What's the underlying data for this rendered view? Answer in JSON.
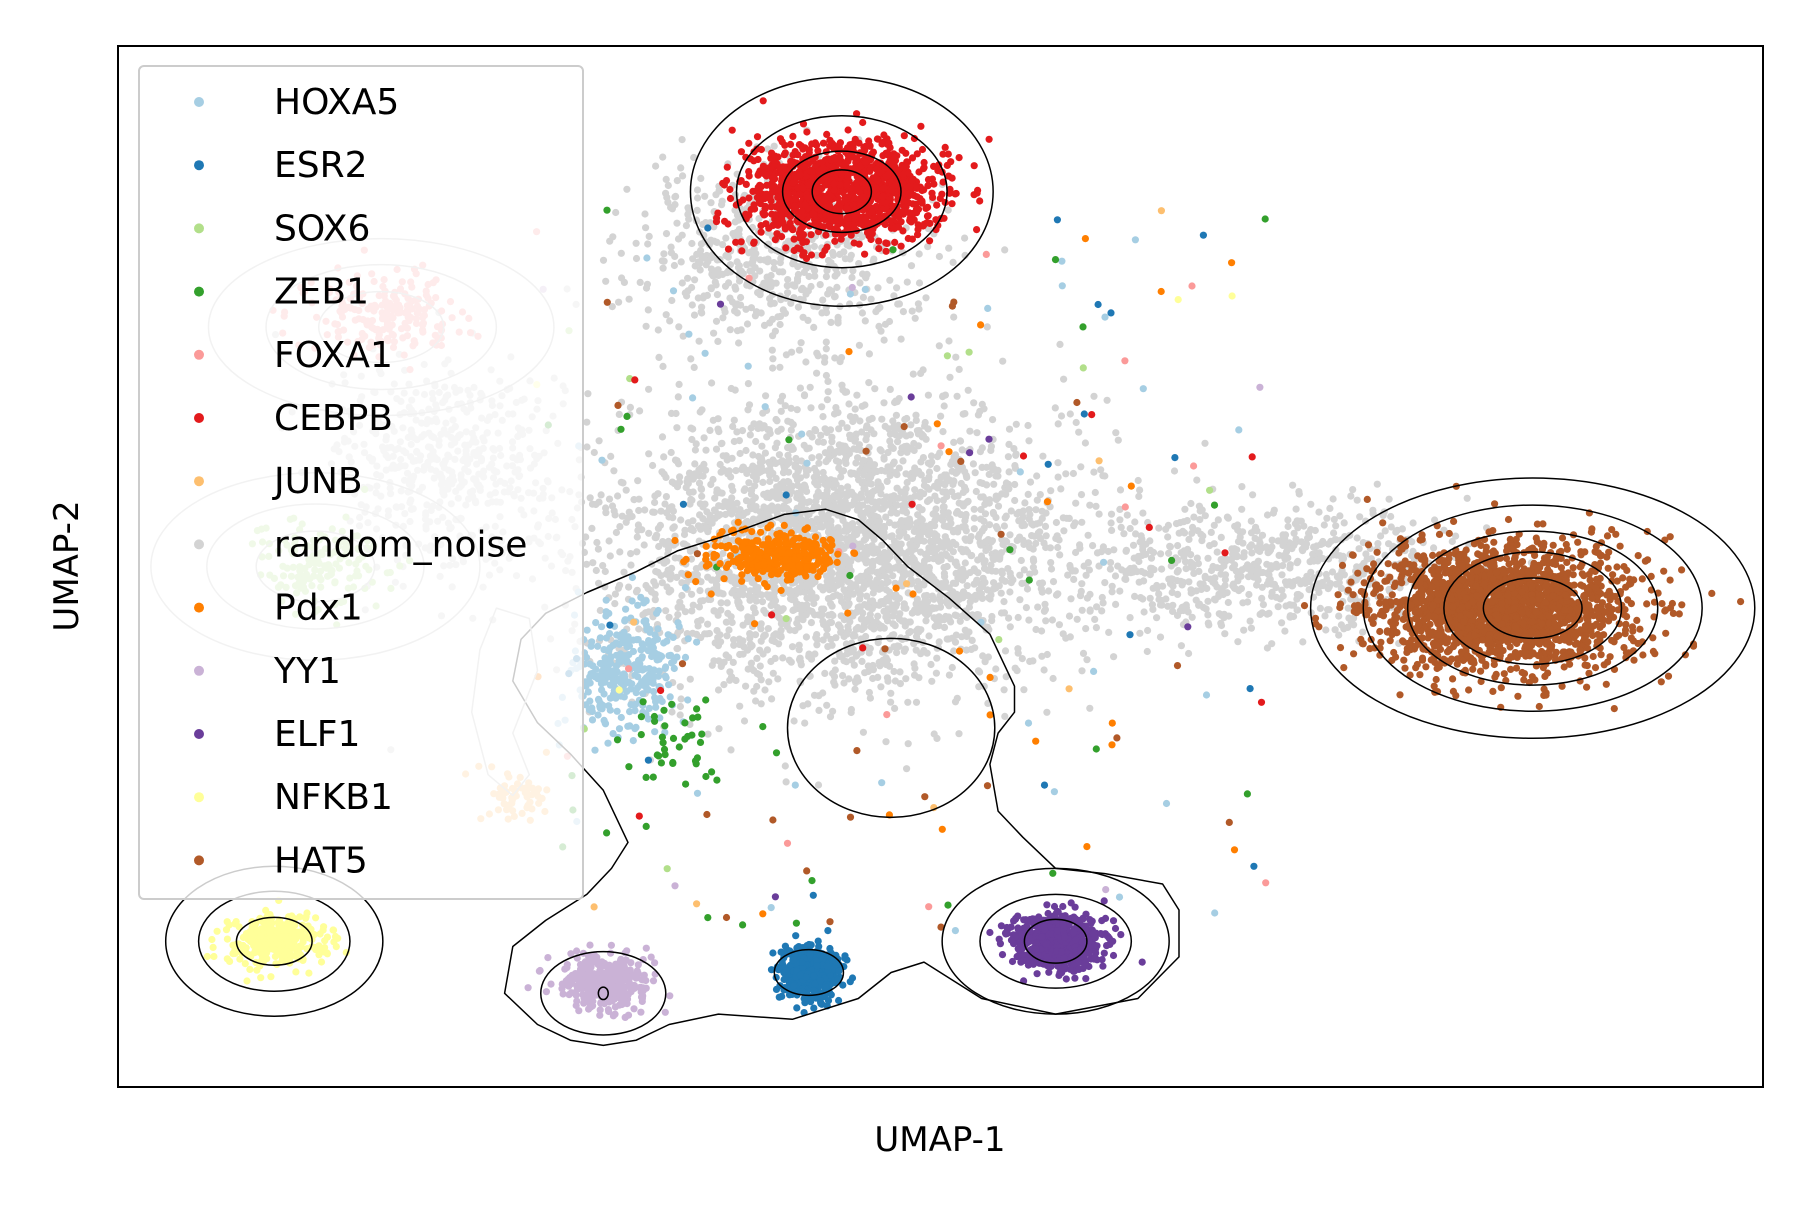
{
  "chart_data": {
    "type": "scatter",
    "xlabel": "UMAP-1",
    "ylabel": "UMAP-2",
    "xlim": [
      0,
      100
    ],
    "ylim": [
      0,
      100
    ],
    "ticks": "hidden",
    "grid": false,
    "legend_placement": "top-left",
    "series": [
      {
        "name": "HOXA5",
        "color": "#a6cee3",
        "clusters": [
          {
            "center": [
              31,
              40
            ],
            "spread": [
              3.2,
              6.0
            ],
            "n": 300
          }
        ],
        "scatter_n": 40
      },
      {
        "name": "ESR2",
        "color": "#1f78b4",
        "clusters": [
          {
            "center": [
              42,
              11
            ],
            "spread": [
              1.8,
              2.6
            ],
            "n": 420
          }
        ],
        "scatter_n": 20
      },
      {
        "name": "SOX6",
        "color": "#b2df8a",
        "clusters": [
          {
            "center": [
              12,
              50
            ],
            "spread": [
              4.0,
              4.2
            ],
            "n": 150
          }
        ],
        "scatter_n": 10
      },
      {
        "name": "ZEB1",
        "color": "#33a02c",
        "clusters": [
          {
            "center": [
              34,
              33
            ],
            "spread": [
              3.0,
              5.0
            ],
            "n": 40
          }
        ],
        "scatter_n": 30
      },
      {
        "name": "FOXA1",
        "color": "#fb9a99",
        "clusters": [
          {
            "center": [
              16,
              74
            ],
            "spread": [
              4.5,
              4.0
            ],
            "n": 200
          }
        ],
        "scatter_n": 15
      },
      {
        "name": "CEBPB",
        "color": "#e31a1c",
        "clusters": [
          {
            "center": [
              44,
              86
            ],
            "spread": [
              5.5,
              4.8
            ],
            "n": 1300
          }
        ],
        "scatter_n": 12
      },
      {
        "name": "JUNB",
        "color": "#fdbf6f",
        "clusters": [
          {
            "center": [
              24,
              28
            ],
            "spread": [
              2.0,
              2.5
            ],
            "n": 60
          }
        ],
        "scatter_n": 8
      },
      {
        "name": "random_noise",
        "color": "#d3d3d3",
        "clusters": [
          {
            "center": [
              44,
              52
            ],
            "spread": [
              14,
              14
            ],
            "n": 3000
          },
          {
            "center": [
              70,
              50
            ],
            "spread": [
              12,
              6
            ],
            "n": 700
          },
          {
            "center": [
              40,
              80
            ],
            "spread": [
              9,
              8
            ],
            "n": 600
          },
          {
            "center": [
              20,
              60
            ],
            "spread": [
              7,
              10
            ],
            "n": 500
          }
        ],
        "scatter_n": 0
      },
      {
        "name": "Pdx1",
        "color": "#ff7f00",
        "clusters": [
          {
            "center": [
              40,
              51
            ],
            "spread": [
              3.8,
              2.4
            ],
            "n": 320
          }
        ],
        "scatter_n": 25
      },
      {
        "name": "YY1",
        "color": "#cab2d6",
        "clusters": [
          {
            "center": [
              29.5,
              10
            ],
            "spread": [
              2.6,
              2.6
            ],
            "n": 380
          }
        ],
        "scatter_n": 6
      },
      {
        "name": "ELF1",
        "color": "#6a3d9a",
        "clusters": [
          {
            "center": [
              57,
              14
            ],
            "spread": [
              2.8,
              2.6
            ],
            "n": 650
          }
        ],
        "scatter_n": 6
      },
      {
        "name": "NFKB1",
        "color": "#ffff99",
        "clusters": [
          {
            "center": [
              9.5,
              14
            ],
            "spread": [
              3.0,
              2.6
            ],
            "n": 320
          }
        ],
        "scatter_n": 4
      },
      {
        "name": "HAT5",
        "color": "#b15928",
        "clusters": [
          {
            "center": [
              84,
              46
            ],
            "spread": [
              7.8,
              6.0
            ],
            "n": 2100
          }
        ],
        "scatter_n": 25
      }
    ],
    "density_contours": [
      {
        "color": "#000000",
        "shape": "ellipses",
        "center": [
          44,
          86
        ],
        "radii": [
          [
            9.2,
            11
          ],
          [
            6.4,
            7.3
          ],
          [
            3.6,
            3.9
          ],
          [
            1.8,
            2.1
          ]
        ]
      },
      {
        "color": "#000000",
        "shape": "ellipses",
        "center": [
          86,
          46
        ],
        "radii": [
          [
            13.5,
            12.5
          ],
          [
            10.3,
            9.9
          ],
          [
            7.6,
            7.4
          ],
          [
            5.4,
            5.4
          ],
          [
            3.0,
            2.9
          ]
        ]
      },
      {
        "color": "#000000",
        "shape": "ellipses",
        "center": [
          9.5,
          14
        ],
        "radii": [
          [
            6.6,
            7.2
          ],
          [
            4.6,
            4.8
          ],
          [
            2.3,
            2.3
          ]
        ]
      },
      {
        "color": "#000000",
        "shape": "ellipses",
        "center": [
          57,
          14
        ],
        "radii": [
          [
            6.9,
            7.0
          ],
          [
            4.6,
            4.5
          ],
          [
            1.9,
            2.1
          ]
        ]
      },
      {
        "color": "#000000",
        "shape": "ellipses",
        "center": [
          42,
          11
        ],
        "radii": [
          [
            2.1,
            2.2
          ]
        ]
      },
      {
        "color": "#000000",
        "shape": "ellipses",
        "center": [
          29.5,
          9
        ],
        "radii": [
          [
            3.8,
            4.0
          ],
          [
            0.3,
            0.6
          ]
        ]
      },
      {
        "color": "#000000",
        "shape": "ellipses",
        "center": [
          47,
          34.5
        ],
        "radii": [
          [
            6.3,
            8.6
          ]
        ]
      },
      {
        "color": "#000000",
        "shape": "path",
        "points": [
          [
            24.5,
            43
          ],
          [
            26,
            45.5
          ],
          [
            28.5,
            47.5
          ],
          [
            31.5,
            49.5
          ],
          [
            34,
            51.5
          ],
          [
            37,
            53
          ],
          [
            40.5,
            55
          ],
          [
            43,
            55.5
          ],
          [
            45,
            54.5
          ],
          [
            46.5,
            52.5
          ],
          [
            48,
            50
          ],
          [
            50.5,
            47
          ],
          [
            53,
            43.5
          ],
          [
            54.5,
            38.5
          ],
          [
            54.5,
            36
          ],
          [
            53.5,
            34
          ],
          [
            53,
            31
          ],
          [
            53.5,
            26.5
          ],
          [
            55,
            24
          ],
          [
            57,
            21
          ],
          [
            60,
            20.5
          ],
          [
            63.5,
            19.5
          ],
          [
            64.5,
            17
          ],
          [
            64.5,
            12.5
          ],
          [
            62,
            8.5
          ],
          [
            57,
            7
          ],
          [
            52.5,
            8.5
          ],
          [
            50.5,
            10.5
          ],
          [
            49,
            12
          ],
          [
            47,
            11
          ],
          [
            45,
            8.5
          ],
          [
            41,
            6.5
          ],
          [
            36.5,
            7
          ],
          [
            33.5,
            6
          ],
          [
            31.5,
            4.5
          ],
          [
            29.5,
            4
          ],
          [
            27.5,
            4.5
          ],
          [
            25.5,
            6
          ],
          [
            23.5,
            9
          ],
          [
            24,
            13.5
          ],
          [
            26,
            16
          ],
          [
            28.5,
            18.5
          ],
          [
            30,
            21
          ],
          [
            31,
            23.5
          ],
          [
            29.5,
            28.5
          ],
          [
            27.5,
            32
          ],
          [
            25.5,
            35
          ],
          [
            24,
            39
          ],
          [
            24.5,
            43
          ]
        ]
      },
      {
        "color": "#bdbdbd",
        "shape": "ellipses",
        "center": [
          16,
          73
        ],
        "radii": [
          [
            10.5,
            8.5
          ],
          [
            7.0,
            6.0
          ],
          [
            3.8,
            3.4
          ]
        ]
      },
      {
        "color": "#bdbdbd",
        "shape": "ellipses",
        "center": [
          12,
          50
        ],
        "radii": [
          [
            10.0,
            9.0
          ],
          [
            6.6,
            6.0
          ],
          [
            3.6,
            3.4
          ]
        ]
      },
      {
        "color": "#bdbdbd",
        "shape": "path",
        "points": [
          [
            24,
            34
          ],
          [
            25.5,
            40
          ],
          [
            25,
            45
          ],
          [
            23,
            46
          ],
          [
            22,
            42
          ],
          [
            21.5,
            36
          ],
          [
            22.5,
            30
          ],
          [
            24,
            28
          ],
          [
            25,
            30
          ],
          [
            24,
            34
          ]
        ]
      }
    ]
  }
}
